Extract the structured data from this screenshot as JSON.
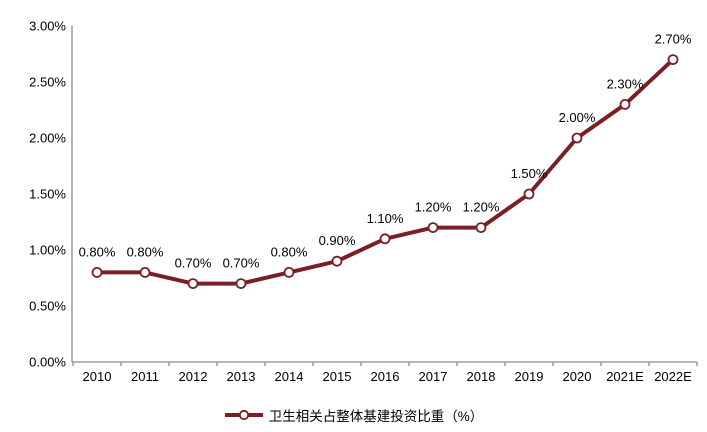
{
  "chart_data": {
    "type": "line",
    "title": "",
    "xlabel": "",
    "ylabel": "",
    "categories": [
      "2010",
      "2011",
      "2012",
      "2013",
      "2014",
      "2015",
      "2016",
      "2017",
      "2018",
      "2019",
      "2020",
      "2021E",
      "2022E"
    ],
    "series": [
      {
        "name": "卫生相关占整体基建投资比重（%）",
        "values": [
          0.8,
          0.8,
          0.7,
          0.7,
          0.8,
          0.9,
          1.1,
          1.2,
          1.2,
          1.5,
          2.0,
          2.3,
          2.7
        ],
        "point_labels": [
          "0.80%",
          "0.80%",
          "0.70%",
          "0.70%",
          "0.80%",
          "0.90%",
          "1.10%",
          "1.20%",
          "1.20%",
          "1.50%",
          "2.00%",
          "2.30%",
          "2.70%"
        ],
        "color": "#7B1F24",
        "marker": "circle-white-fill"
      }
    ],
    "ylim": [
      0,
      3
    ],
    "y_ticks": {
      "values": [
        0,
        0.5,
        1,
        1.5,
        2,
        2.5,
        3
      ],
      "labels": [
        "0.00%",
        "0.50%",
        "1.00%",
        "1.50%",
        "2.00%",
        "2.50%",
        "3.00%"
      ]
    },
    "grid": false,
    "legend_position": "bottom",
    "legend_label": "卫生相关占整体基建投资比重（%）",
    "colors": {
      "line": "#7B1F24",
      "marker_fill": "#FFFFFF",
      "axis": "#8C8C8C",
      "text": "#000000",
      "background": "#FFFFFF"
    }
  }
}
